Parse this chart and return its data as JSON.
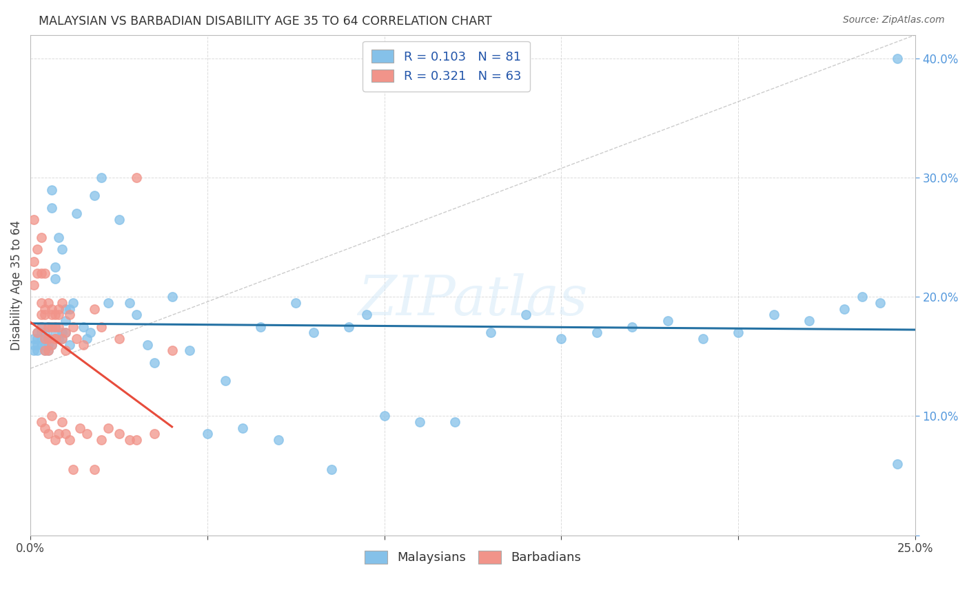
{
  "title": "MALAYSIAN VS BARBADIAN DISABILITY AGE 35 TO 64 CORRELATION CHART",
  "source": "Source: ZipAtlas.com",
  "ylabel": "Disability Age 35 to 64",
  "xlim": [
    0.0,
    0.25
  ],
  "ylim": [
    0.0,
    0.42
  ],
  "color_malaysian": "#85C1E9",
  "color_barbadian": "#F1948A",
  "color_line_malaysian": "#2471A3",
  "color_line_barbadian": "#E74C3C",
  "background_color": "#FFFFFF",
  "grid_color": "#CCCCCC",
  "malaysian_x": [
    0.001,
    0.001,
    0.001,
    0.002,
    0.002,
    0.002,
    0.002,
    0.003,
    0.003,
    0.003,
    0.003,
    0.004,
    0.004,
    0.004,
    0.004,
    0.005,
    0.005,
    0.005,
    0.005,
    0.005,
    0.006,
    0.006,
    0.007,
    0.007,
    0.007,
    0.008,
    0.008,
    0.009,
    0.009,
    0.01,
    0.01,
    0.011,
    0.012,
    0.013,
    0.015,
    0.016,
    0.017,
    0.018,
    0.02,
    0.022,
    0.025,
    0.028,
    0.03,
    0.033,
    0.035,
    0.04,
    0.045,
    0.05,
    0.055,
    0.06,
    0.065,
    0.07,
    0.075,
    0.08,
    0.085,
    0.09,
    0.095,
    0.1,
    0.11,
    0.12,
    0.13,
    0.14,
    0.15,
    0.16,
    0.17,
    0.18,
    0.19,
    0.2,
    0.21,
    0.22,
    0.23,
    0.235,
    0.24,
    0.245,
    0.005,
    0.006,
    0.007,
    0.009,
    0.01,
    0.011,
    0.245
  ],
  "malaysian_y": [
    0.165,
    0.155,
    0.16,
    0.17,
    0.165,
    0.155,
    0.16,
    0.175,
    0.165,
    0.16,
    0.17,
    0.165,
    0.155,
    0.17,
    0.16,
    0.165,
    0.175,
    0.16,
    0.155,
    0.165,
    0.29,
    0.275,
    0.215,
    0.17,
    0.225,
    0.25,
    0.165,
    0.24,
    0.17,
    0.19,
    0.18,
    0.19,
    0.195,
    0.27,
    0.175,
    0.165,
    0.17,
    0.285,
    0.3,
    0.195,
    0.265,
    0.195,
    0.185,
    0.16,
    0.145,
    0.2,
    0.155,
    0.085,
    0.13,
    0.09,
    0.175,
    0.08,
    0.195,
    0.17,
    0.055,
    0.175,
    0.185,
    0.1,
    0.095,
    0.095,
    0.17,
    0.185,
    0.165,
    0.17,
    0.175,
    0.18,
    0.165,
    0.17,
    0.185,
    0.18,
    0.19,
    0.2,
    0.195,
    0.06,
    0.165,
    0.16,
    0.175,
    0.165,
    0.17,
    0.16,
    0.4
  ],
  "barbadian_x": [
    0.001,
    0.001,
    0.001,
    0.002,
    0.002,
    0.002,
    0.003,
    0.003,
    0.003,
    0.003,
    0.003,
    0.004,
    0.004,
    0.004,
    0.004,
    0.004,
    0.005,
    0.005,
    0.005,
    0.005,
    0.006,
    0.006,
    0.006,
    0.006,
    0.007,
    0.007,
    0.007,
    0.007,
    0.008,
    0.008,
    0.008,
    0.009,
    0.009,
    0.01,
    0.01,
    0.011,
    0.012,
    0.013,
    0.015,
    0.018,
    0.02,
    0.025,
    0.03,
    0.003,
    0.004,
    0.005,
    0.006,
    0.007,
    0.008,
    0.009,
    0.01,
    0.011,
    0.012,
    0.014,
    0.016,
    0.018,
    0.02,
    0.022,
    0.025,
    0.028,
    0.03,
    0.035,
    0.04
  ],
  "barbadian_y": [
    0.265,
    0.21,
    0.23,
    0.24,
    0.22,
    0.17,
    0.195,
    0.22,
    0.185,
    0.25,
    0.175,
    0.19,
    0.165,
    0.22,
    0.155,
    0.185,
    0.195,
    0.175,
    0.155,
    0.165,
    0.185,
    0.175,
    0.16,
    0.19,
    0.175,
    0.165,
    0.185,
    0.165,
    0.19,
    0.175,
    0.185,
    0.165,
    0.195,
    0.155,
    0.17,
    0.185,
    0.175,
    0.165,
    0.16,
    0.19,
    0.175,
    0.165,
    0.3,
    0.095,
    0.09,
    0.085,
    0.1,
    0.08,
    0.085,
    0.095,
    0.085,
    0.08,
    0.055,
    0.09,
    0.085,
    0.055,
    0.08,
    0.09,
    0.085,
    0.08,
    0.08,
    0.085,
    0.155
  ]
}
